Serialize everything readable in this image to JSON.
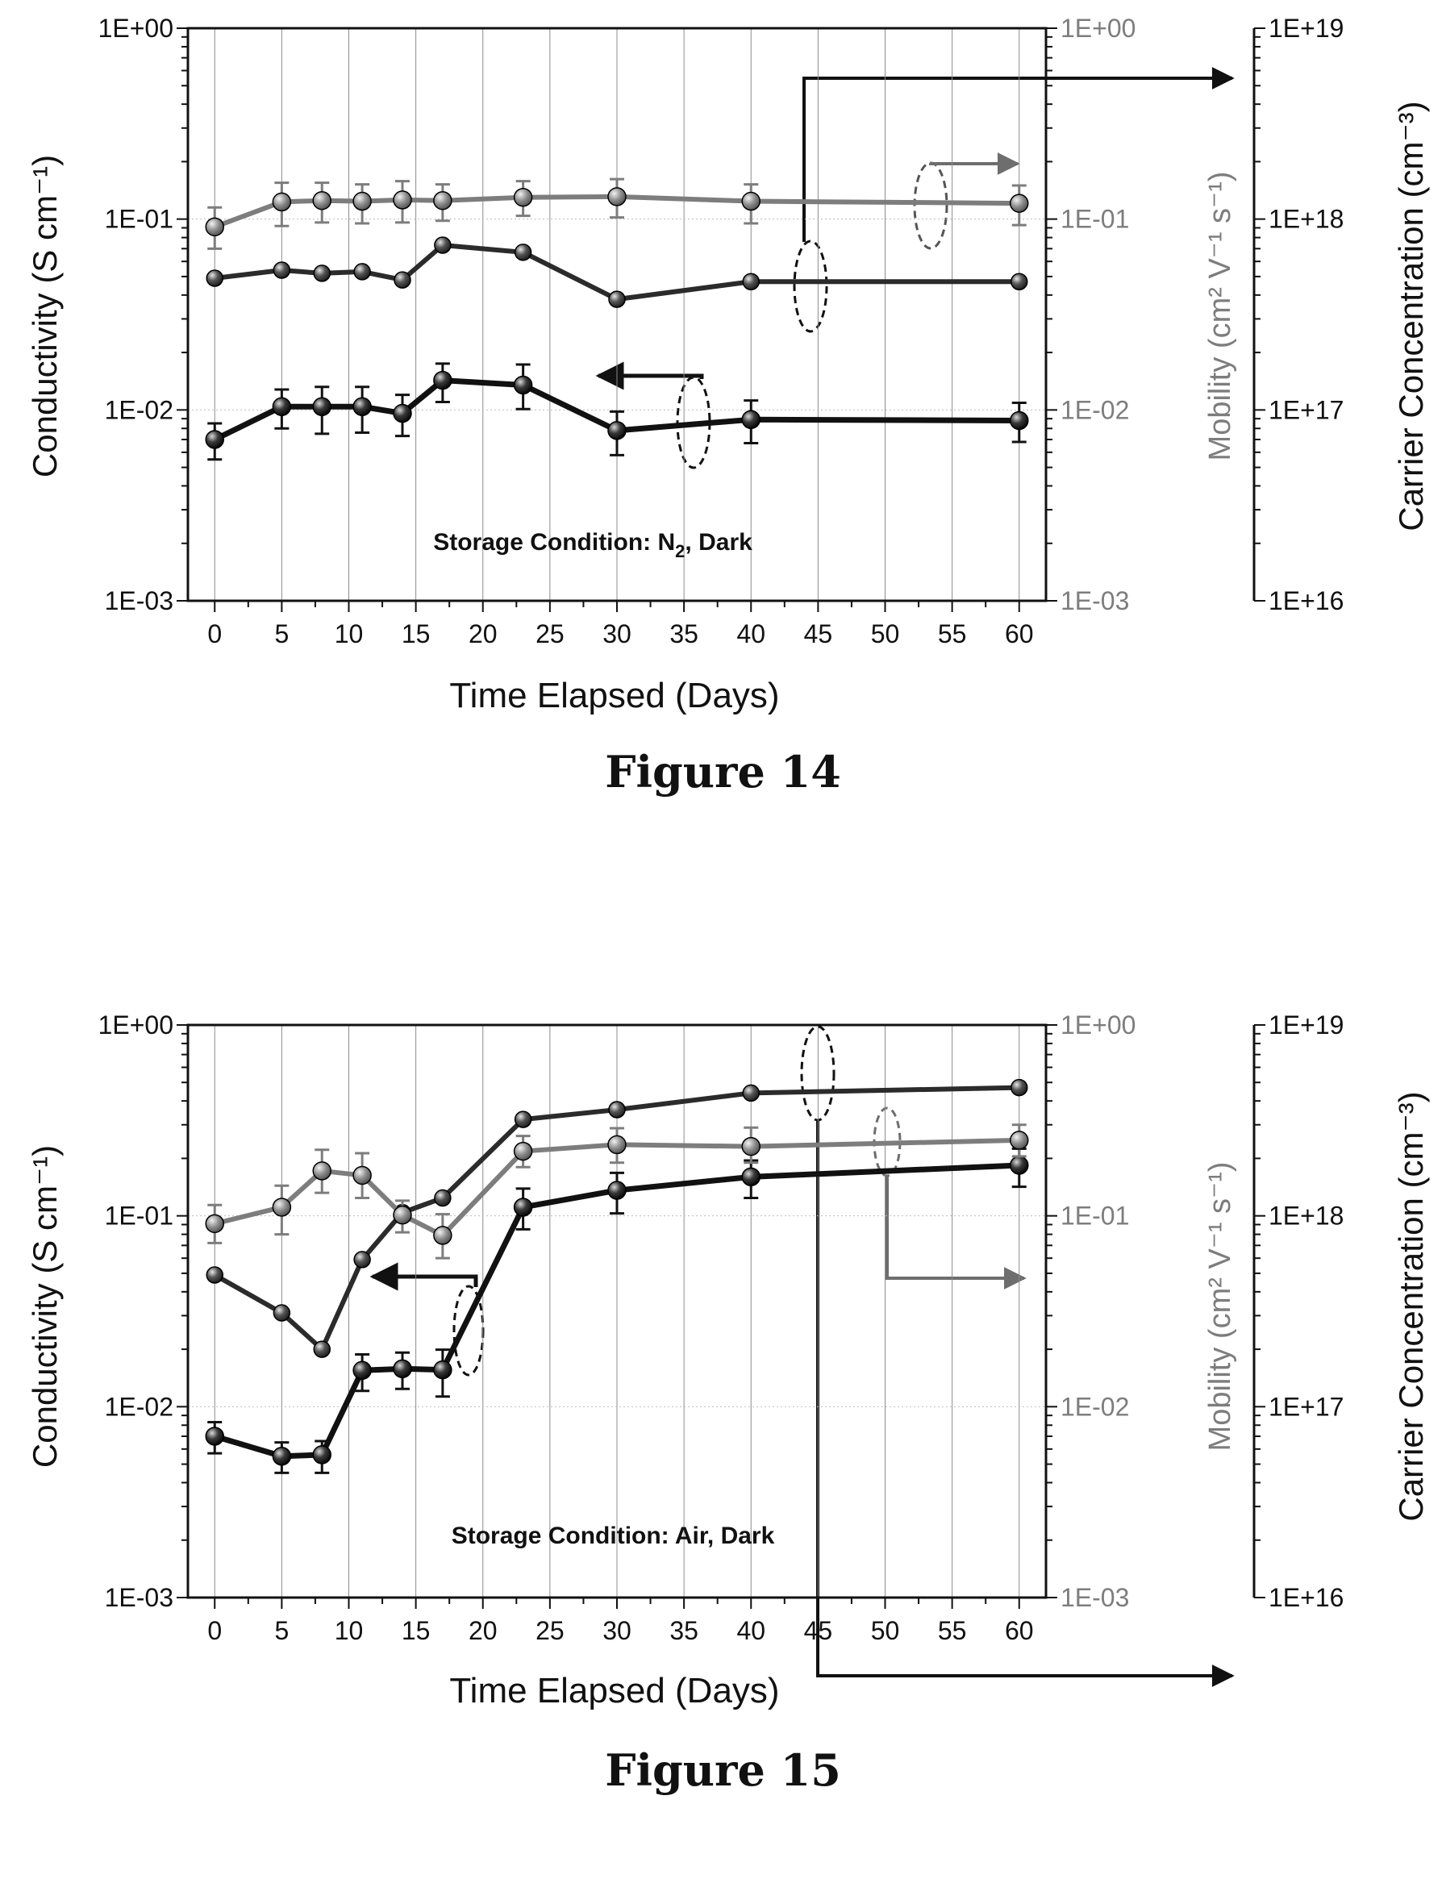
{
  "colors": {
    "conductivity": "#111111",
    "carrier": "#2b2b2b",
    "mobility": "#7d7d7d",
    "axis": "#111111",
    "grid": "#8c8c8c"
  },
  "figures": [
    {
      "caption": "Figure 14",
      "annotation": "Storage Condition: N2, Dark",
      "annotation_main": "Storage Condition: N",
      "annotation_sub": "2",
      "annotation_tail": ", Dark"
    },
    {
      "caption": "Figure 15",
      "annotation": "Storage Condition: Air, Dark"
    }
  ],
  "axis_titles": {
    "x": "Time Elapsed (Days)",
    "left": "Conductivity (S cm⁻¹)",
    "mobility": "Mobility (cm² V⁻¹ s⁻¹)",
    "carrier": "Carrier Concentration (cm⁻³)"
  },
  "chart_data": [
    {
      "type": "line",
      "title": "Figure 14",
      "annotation": "Storage Condition: N2, Dark",
      "xlabel": "Time Elapsed (Days)",
      "ylabel": "Conductivity (S cm⁻¹)",
      "y2label": "Mobility (cm² V⁻¹ s⁻¹)",
      "y3label": "Carrier Concentration (cm⁻³)",
      "xlim": [
        -2,
        62
      ],
      "x_ticks": [
        0,
        5,
        10,
        15,
        20,
        25,
        30,
        35,
        40,
        45,
        50,
        55,
        60
      ],
      "y_scale": "log",
      "ylim": [
        0.001,
        1
      ],
      "y_ticks": [
        "1E-03",
        "1E-02",
        "1E-01",
        "1E+00"
      ],
      "y2lim": [
        0.001,
        1
      ],
      "y2_ticks": [
        "1E-03",
        "1E-02",
        "1E-01",
        "1E+00"
      ],
      "y3lim": [
        1e+16,
        1e+19
      ],
      "y3_ticks": [
        "1E+16",
        "1E+17",
        "1E+18",
        "1E+19"
      ],
      "grid": "vertical",
      "series": [
        {
          "axis": "conductivity",
          "color": "#111111",
          "x": [
            0,
            5,
            8,
            11,
            14,
            17,
            23,
            30,
            40,
            60
          ],
          "y": [
            0.007,
            0.0104,
            0.0104,
            0.0104,
            0.0096,
            0.0143,
            0.0135,
            0.0078,
            0.0089,
            0.0088
          ],
          "err_low": [
            0.0055,
            0.008,
            0.0075,
            0.0076,
            0.0073,
            0.011,
            0.0101,
            0.0058,
            0.0067,
            0.0068
          ],
          "err_high": [
            0.0085,
            0.0128,
            0.0132,
            0.0132,
            0.012,
            0.0175,
            0.0173,
            0.0098,
            0.0112,
            0.0109
          ]
        },
        {
          "axis": "carrier",
          "color": "#2b2b2b",
          "x": [
            0,
            5,
            8,
            11,
            14,
            17,
            23,
            30,
            40,
            60
          ],
          "y": [
            4.9e+17,
            5.4e+17,
            5.2e+17,
            5.3e+17,
            4.8e+17,
            7.3e+17,
            6.7e+17,
            3.8e+17,
            4.7e+17,
            4.7e+17
          ]
        },
        {
          "axis": "mobility",
          "color": "#7d7d7d",
          "x": [
            0,
            5,
            8,
            11,
            14,
            17,
            23,
            30,
            40,
            60
          ],
          "y": [
            0.091,
            0.123,
            0.125,
            0.124,
            0.126,
            0.125,
            0.13,
            0.131,
            0.124,
            0.121
          ],
          "err_low": [
            0.07,
            0.092,
            0.096,
            0.095,
            0.096,
            0.098,
            0.104,
            0.102,
            0.095,
            0.093
          ],
          "err_high": [
            0.115,
            0.155,
            0.155,
            0.152,
            0.158,
            0.152,
            0.158,
            0.162,
            0.152,
            0.15
          ]
        }
      ]
    },
    {
      "type": "line",
      "title": "Figure 15",
      "annotation": "Storage Condition: Air, Dark",
      "xlabel": "Time Elapsed (Days)",
      "ylabel": "Conductivity (S cm⁻¹)",
      "y2label": "Mobility (cm² V⁻¹ s⁻¹)",
      "y3label": "Carrier Concentration (cm⁻³)",
      "xlim": [
        -2,
        62
      ],
      "x_ticks": [
        0,
        5,
        10,
        15,
        20,
        25,
        30,
        35,
        40,
        45,
        50,
        55,
        60
      ],
      "y_scale": "log",
      "ylim": [
        0.001,
        1
      ],
      "y_ticks": [
        "1E-03",
        "1E-02",
        "1E-01",
        "1E+00"
      ],
      "y2lim": [
        0.001,
        1
      ],
      "y2_ticks": [
        "1E-03",
        "1E-02",
        "1E-01",
        "1E+00"
      ],
      "y3lim": [
        1e+16,
        1e+19
      ],
      "y3_ticks": [
        "1E+16",
        "1E+17",
        "1E+18",
        "1E+19"
      ],
      "grid": "vertical",
      "series": [
        {
          "axis": "conductivity",
          "color": "#111111",
          "x": [
            0,
            5,
            8,
            11,
            14,
            17,
            23,
            30,
            40,
            60
          ],
          "y": [
            0.007,
            0.0055,
            0.0056,
            0.0155,
            0.0158,
            0.0156,
            0.111,
            0.136,
            0.16,
            0.184
          ],
          "err_low": [
            0.0057,
            0.0045,
            0.0045,
            0.0121,
            0.0124,
            0.0113,
            0.085,
            0.103,
            0.124,
            0.142
          ],
          "err_high": [
            0.0083,
            0.0065,
            0.0066,
            0.0188,
            0.0192,
            0.0199,
            0.139,
            0.168,
            0.195,
            0.225
          ]
        },
        {
          "axis": "carrier",
          "color": "#2b2b2b",
          "x": [
            0,
            5,
            8,
            11,
            14,
            17,
            23,
            30,
            40,
            60
          ],
          "y": [
            4.9e+17,
            3.1e+17,
            2e+17,
            5.9e+17,
            1.04e+18,
            1.24e+18,
            3.2e+18,
            3.6e+18,
            4.4e+18,
            4.7e+18
          ]
        },
        {
          "axis": "mobility",
          "color": "#7d7d7d",
          "x": [
            0,
            5,
            8,
            11,
            14,
            17,
            23,
            30,
            40,
            60
          ],
          "y": [
            0.091,
            0.111,
            0.172,
            0.163,
            0.101,
            0.079,
            0.218,
            0.236,
            0.231,
            0.249
          ],
          "err_low": [
            0.072,
            0.08,
            0.132,
            0.124,
            0.082,
            0.06,
            0.18,
            0.19,
            0.19,
            0.205
          ],
          "err_high": [
            0.114,
            0.144,
            0.222,
            0.213,
            0.12,
            0.102,
            0.262,
            0.288,
            0.29,
            0.3
          ]
        }
      ]
    }
  ]
}
